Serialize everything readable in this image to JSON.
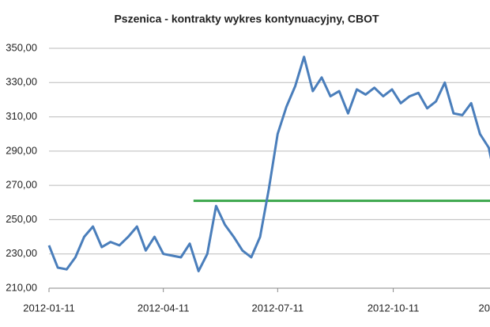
{
  "chart_data": {
    "type": "line",
    "title": "Pszenica - kontrakty wykres kontynuacyjny, CBOT",
    "x": [
      "2012-01-11",
      "2012-01-18",
      "2012-01-25",
      "2012-02-01",
      "2012-02-08",
      "2012-02-15",
      "2012-02-22",
      "2012-02-29",
      "2012-03-07",
      "2012-03-14",
      "2012-03-21",
      "2012-03-28",
      "2012-04-04",
      "2012-04-11",
      "2012-04-18",
      "2012-04-25",
      "2012-05-02",
      "2012-05-09",
      "2012-05-16",
      "2012-05-23",
      "2012-05-30",
      "2012-06-06",
      "2012-06-13",
      "2012-06-20",
      "2012-06-27",
      "2012-07-04",
      "2012-07-11",
      "2012-07-18",
      "2012-07-25",
      "2012-08-01",
      "2012-08-08",
      "2012-08-15",
      "2012-08-22",
      "2012-08-29",
      "2012-09-05",
      "2012-09-12",
      "2012-09-19",
      "2012-09-26",
      "2012-10-03",
      "2012-10-10",
      "2012-10-17",
      "2012-10-24",
      "2012-10-31",
      "2012-11-07",
      "2012-11-14",
      "2012-11-21",
      "2012-11-28",
      "2012-12-05",
      "2012-12-12",
      "2012-12-19",
      "2012-12-26",
      "2012-12-28"
    ],
    "series": [
      {
        "name": "Pszenica",
        "color": "#4a7ebb",
        "values": [
          235,
          222,
          221,
          228,
          240,
          246,
          234,
          237,
          235,
          240,
          246,
          232,
          240,
          230,
          229,
          228,
          236,
          220,
          230,
          258,
          247,
          240,
          232,
          228,
          240,
          268,
          300,
          316,
          328,
          345,
          325,
          333,
          322,
          325,
          312,
          326,
          323,
          327,
          322,
          326,
          318,
          322,
          324,
          315,
          319,
          330,
          312,
          311,
          318,
          300,
          292,
          285
        ]
      }
    ],
    "reference_line": {
      "value": 261,
      "from": "2012-05-05",
      "color": "#3aa64a"
    },
    "xlim": [
      "2012-01-11",
      "2012-12-27"
    ],
    "xticks": [
      "2012-01-11",
      "2012-04-11",
      "2012-07-11",
      "2012-10-11",
      {
        "value": "2013-01-11",
        "label": "20"
      }
    ],
    "ylim": [
      210,
      350
    ],
    "yticks": [
      {
        "value": 210,
        "label": "210,00"
      },
      {
        "value": 230,
        "label": "230,00"
      },
      {
        "value": 250,
        "label": "250,00"
      },
      {
        "value": 270,
        "label": "270,00"
      },
      {
        "value": 290,
        "label": "290,00"
      },
      {
        "value": 310,
        "label": "310,00"
      },
      {
        "value": 330,
        "label": "330,00"
      },
      {
        "value": 350,
        "label": "350,00"
      }
    ],
    "grid": true
  }
}
